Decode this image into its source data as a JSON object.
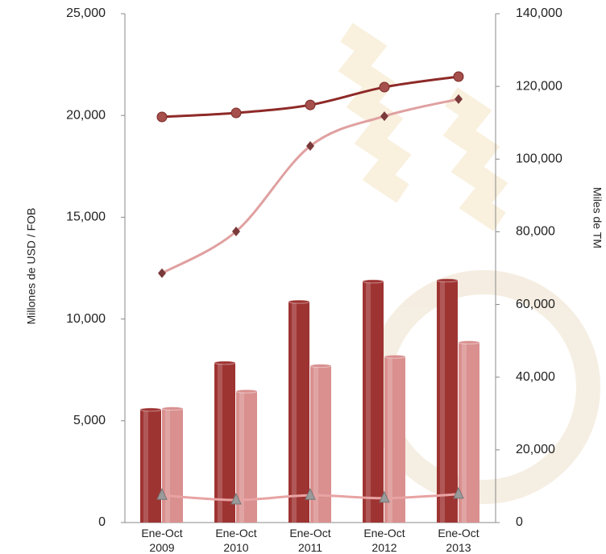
{
  "chart_data": {
    "type": "combo",
    "y_label": "Millones de USD / FOB",
    "y2_label": "Miles de TM",
    "categories": [
      "Ene-Oct 2009",
      "Ene-Oct 2010",
      "Ene-Oct 2011",
      "Ene-Oct 2012",
      "Ene-Oct 2013"
    ],
    "ylim": [
      0,
      25000
    ],
    "yticks": [
      0,
      {
        "value": 5000,
        "label": "5,000"
      },
      {
        "value": 10000,
        "label": "10,000"
      },
      {
        "value": 15000,
        "label": "15,000"
      },
      {
        "value": 20000,
        "label": "20,000"
      },
      {
        "value": 25000,
        "label": "25,000"
      }
    ],
    "y2lim": [
      0,
      140000
    ],
    "y2ticks": [
      0,
      {
        "value": 20000,
        "label": "20,000"
      },
      {
        "value": 40000,
        "label": "40,000"
      },
      {
        "value": 60000,
        "label": "60,000"
      },
      {
        "value": 80000,
        "label": "80,000"
      },
      {
        "value": 100000,
        "label": "100,000"
      },
      {
        "value": 120000,
        "label": "120,000"
      },
      {
        "value": 140000,
        "label": "140,000"
      }
    ],
    "series": [
      {
        "type": "bar",
        "color": "#9e3432",
        "values": [
          5550,
          7850,
          10850,
          11850,
          11900
        ]
      },
      {
        "type": "bar",
        "color": "#d9908f",
        "values": [
          5600,
          6450,
          7700,
          8150,
          8850
        ]
      },
      {
        "type": "line",
        "axis": "y2",
        "marker": "circle",
        "color": "#8e2a28",
        "values": [
          111600,
          112700,
          114900,
          119800,
          122700
        ]
      },
      {
        "type": "line",
        "axis": "y2",
        "marker": "diamond",
        "color": "#e0a0a0",
        "values": [
          68600,
          80100,
          103600,
          111800,
          116500
        ]
      },
      {
        "type": "line",
        "axis": "y2",
        "marker": "triangle",
        "color": "#e8a3a3",
        "values": [
          7500,
          6200,
          7500,
          6700,
          7800
        ]
      }
    ]
  }
}
